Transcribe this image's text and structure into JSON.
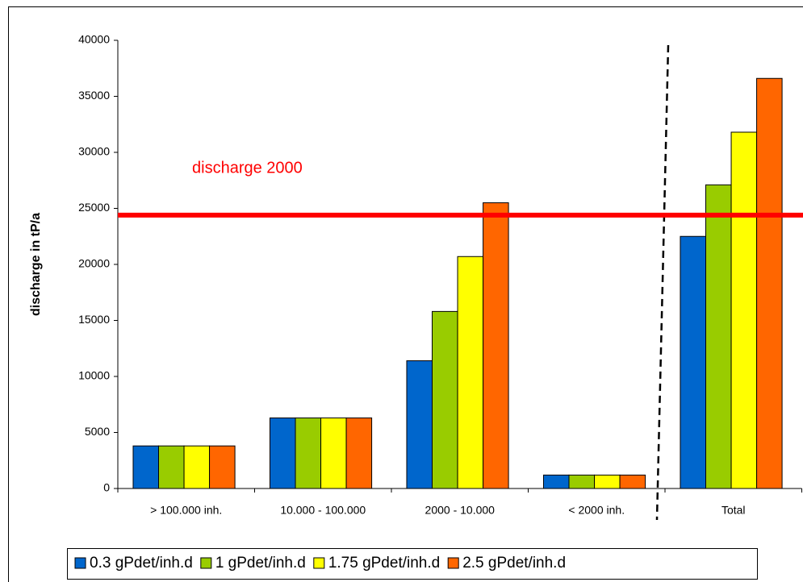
{
  "chart_data": {
    "type": "bar",
    "y_label": "discharge in tP/a",
    "categories": [
      "> 100.000 inh.",
      "10.000 - 100.000",
      "2000 - 10.000",
      "< 2000 inh.",
      "Total"
    ],
    "series": [
      {
        "name": "0.3 gPdet/inh.d",
        "color": "#0066cc",
        "values": [
          3800,
          6300,
          11400,
          1200,
          22500
        ]
      },
      {
        "name": "1 gPdet/inh.d",
        "color": "#99cc00",
        "values": [
          3800,
          6300,
          15800,
          1200,
          27100
        ]
      },
      {
        "name": "1.75 gPdet/inh.d",
        "color": "#ffff00",
        "values": [
          3800,
          6300,
          20700,
          1200,
          31800
        ]
      },
      {
        "name": "2.5 gPdet/inh.d",
        "color": "#ff6600",
        "values": [
          3800,
          6300,
          25500,
          1200,
          36600
        ]
      }
    ],
    "ylim": [
      0,
      40000
    ],
    "yticks": [
      0,
      5000,
      10000,
      15000,
      20000,
      25000,
      30000,
      35000,
      40000
    ],
    "reference_line": {
      "label": "discharge 2000",
      "value": 24400,
      "color": "#ff0000"
    },
    "legend": "bottom"
  }
}
